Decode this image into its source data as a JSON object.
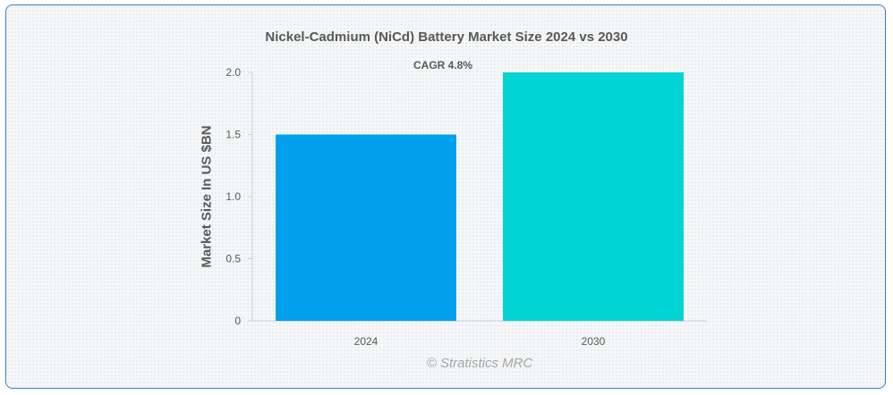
{
  "chart_data": {
    "type": "bar",
    "title": "Nickel-Cadmium (NiCd) Battery Market Size 2024 vs 2030",
    "xlabel": "",
    "ylabel": "Market Size In US $BN",
    "categories": [
      "2024",
      "2030"
    ],
    "values": [
      1.5,
      2.0
    ],
    "colors": [
      "#00a0ec",
      "#00d4d4"
    ],
    "ylim": [
      0,
      2.0
    ],
    "yticks": [
      0,
      0.5,
      1.0,
      1.5,
      2.0
    ],
    "ytick_labels": [
      "0",
      "0.5",
      "1.0",
      "1.5",
      "2.0"
    ],
    "annotation": "CAGR 4.8%",
    "grid": false,
    "legend": "none"
  },
  "watermark": "© Stratistics MRC"
}
